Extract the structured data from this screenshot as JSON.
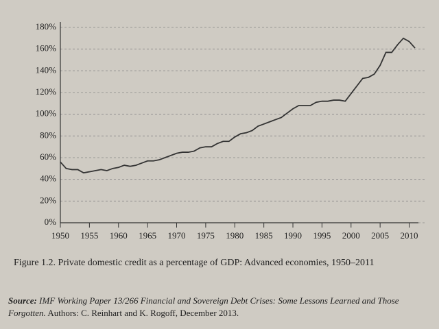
{
  "chart_data": {
    "type": "line",
    "x": [
      1950,
      1951,
      1952,
      1953,
      1954,
      1955,
      1956,
      1957,
      1958,
      1959,
      1960,
      1961,
      1962,
      1963,
      1964,
      1965,
      1966,
      1967,
      1968,
      1969,
      1970,
      1971,
      1972,
      1973,
      1974,
      1975,
      1976,
      1977,
      1978,
      1979,
      1980,
      1981,
      1982,
      1983,
      1984,
      1985,
      1986,
      1987,
      1988,
      1989,
      1990,
      1991,
      1992,
      1993,
      1994,
      1995,
      1996,
      1997,
      1998,
      1999,
      2000,
      2001,
      2002,
      2003,
      2004,
      2005,
      2006,
      2007,
      2008,
      2009,
      2010,
      2011
    ],
    "series": [
      {
        "color": "#333333",
        "values": [
          56,
          50,
          49,
          49,
          46,
          47,
          48,
          49,
          48,
          50,
          51,
          53,
          52,
          53,
          55,
          57,
          57,
          58,
          60,
          62,
          64,
          65,
          65,
          66,
          69,
          70,
          70,
          73,
          75,
          75,
          79,
          82,
          83,
          85,
          89,
          91,
          93,
          95,
          97,
          101,
          105,
          108,
          108,
          108,
          111,
          112,
          112,
          113,
          113,
          112,
          119,
          126,
          133,
          134,
          137,
          145,
          157,
          157,
          164,
          170,
          167,
          161
        ]
      }
    ],
    "xlim": [
      1950,
      2011
    ],
    "xticks": [
      1950,
      1955,
      1960,
      1965,
      1970,
      1975,
      1980,
      1985,
      1990,
      1995,
      2000,
      2005,
      2010
    ],
    "ylim": [
      0,
      180
    ],
    "yticks": [
      {
        "value": 0,
        "label": "0%"
      },
      {
        "value": 20,
        "label": "20%"
      },
      {
        "value": 40,
        "label": "40%"
      },
      {
        "value": 60,
        "label": "60%"
      },
      {
        "value": 80,
        "label": "80%"
      },
      {
        "value": 100,
        "label": "100%"
      },
      {
        "value": 120,
        "label": "120%"
      },
      {
        "value": 140,
        "label": "140%"
      },
      {
        "value": 160,
        "label": "160%"
      },
      {
        "value": 180,
        "label": "180%"
      }
    ],
    "grid": true,
    "caption": "Figure 1.2.  Private domestic credit as a percentage of GDP: Advanced economies, 1950–2011",
    "source": {
      "label": "Source:",
      "text": "IMF Working Paper 13/266",
      "title": "Financial and Sovereign Debt Crises: Some Lessons Learned and Those Forgotten.",
      "authors": "Authors: C. Reinhart and K. Rogoff, December 2013."
    }
  }
}
